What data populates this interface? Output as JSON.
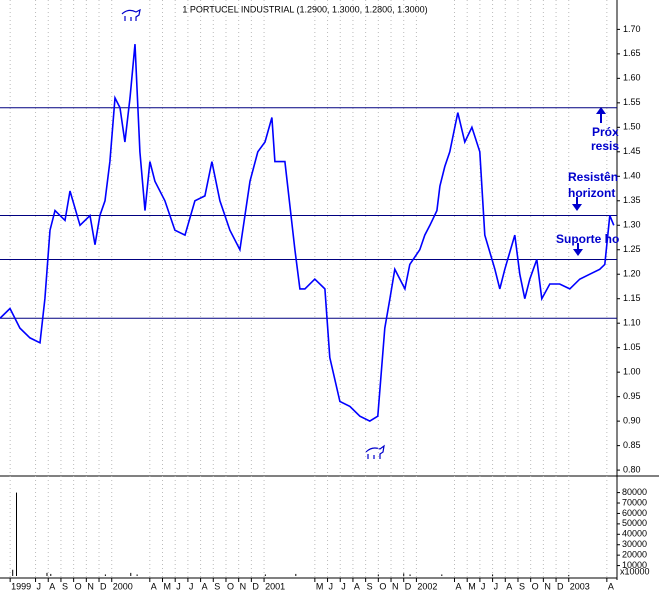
{
  "chart_data": {
    "type": "line",
    "title": "1 PORTUCEL INDUSTRIAL (1.2900, 1.3000, 1.2800, 1.3000)",
    "x": [
      3.2,
      3.99,
      4.77,
      5.56,
      6.35,
      6.74,
      7.14,
      7.53,
      8.32,
      8.71,
      9.5,
      10.29,
      10.68,
      11.07,
      11.47,
      11.86,
      12.26,
      12.65,
      13.04,
      13.44,
      13.83,
      14.22,
      14.62,
      15.01,
      15.4,
      16.19,
      16.98,
      17.77,
      18.55,
      19.34,
      19.89,
      20.52,
      21.31,
      22.1,
      22.89,
      23.51,
      24.07,
      24.62,
      24.85,
      25.64,
      26.43,
      26.82,
      27.22,
      28.0,
      28.79,
      29.18,
      29.97,
      30.76,
      31.55,
      32.33,
      32.96,
      33.51,
      33.91,
      34.3,
      35.09,
      35.48,
      36.27,
      36.66,
      37.06,
      37.61,
      37.85,
      38.24,
      38.63,
      39.26,
      39.81,
      40.37,
      40.99,
      41.39,
      42.18,
      42.57,
      42.96,
      43.75,
      44.14,
      44.54,
      44.93,
      45.48,
      45.88,
      46.51,
      47.29,
      48.08,
      48.87,
      49.66,
      50.44,
      50.84,
      51.23,
      51.55
    ],
    "values": [
      1.11,
      1.13,
      1.09,
      1.07,
      1.06,
      1.15,
      1.29,
      1.33,
      1.31,
      1.37,
      1.3,
      1.32,
      1.26,
      1.32,
      1.35,
      1.43,
      1.56,
      1.54,
      1.47,
      1.56,
      1.67,
      1.45,
      1.33,
      1.43,
      1.39,
      1.35,
      1.29,
      1.28,
      1.35,
      1.36,
      1.43,
      1.35,
      1.29,
      1.25,
      1.39,
      1.45,
      1.47,
      1.52,
      1.43,
      1.43,
      1.25,
      1.17,
      1.17,
      1.19,
      1.17,
      1.03,
      0.94,
      0.93,
      0.91,
      0.9,
      0.91,
      1.09,
      1.15,
      1.21,
      1.17,
      1.22,
      1.25,
      1.28,
      1.3,
      1.33,
      1.38,
      1.42,
      1.45,
      1.53,
      1.47,
      1.5,
      1.45,
      1.28,
      1.21,
      1.17,
      1.21,
      1.28,
      1.2,
      1.15,
      1.19,
      1.23,
      1.15,
      1.18,
      1.18,
      1.17,
      1.19,
      1.2,
      1.21,
      1.22,
      1.32,
      1.3
    ],
    "color": "#0000ff",
    "xlim": [
      3.2,
      51.8
    ],
    "ylim": [
      0.79,
      1.76
    ],
    "yticks": [
      {
        "value": 0.8,
        "label": "0.80"
      },
      0.85,
      {
        "value": 0.9,
        "label": "0.90"
      },
      0.95,
      {
        "value": 1.0,
        "label": "1.00"
      },
      1.05,
      {
        "value": 1.1,
        "label": "1.10"
      },
      1.15,
      {
        "value": 1.2,
        "label": "1.20"
      },
      1.25,
      {
        "value": 1.3,
        "label": "1.30"
      },
      1.35,
      {
        "value": 1.4,
        "label": "1.40"
      },
      1.45,
      {
        "value": 1.5,
        "label": "1.50"
      },
      1.55,
      {
        "value": 1.6,
        "label": "1.60"
      },
      1.65,
      {
        "value": 1.7,
        "label": "1.70"
      }
    ],
    "xticks": [
      {
        "value": 4,
        "label": "1999"
      },
      {
        "value": 6,
        "label": "J"
      },
      {
        "value": 7,
        "label": "A"
      },
      {
        "value": 8,
        "label": "S"
      },
      {
        "value": 9,
        "label": "O"
      },
      {
        "value": 10,
        "label": "N"
      },
      {
        "value": 11,
        "label": "D"
      },
      {
        "value": 12,
        "label": "2000"
      },
      {
        "value": 15,
        "label": "A"
      },
      {
        "value": 16,
        "label": "M"
      },
      {
        "value": 17,
        "label": "J"
      },
      {
        "value": 18,
        "label": "J"
      },
      {
        "value": 19,
        "label": "A"
      },
      {
        "value": 20,
        "label": "S"
      },
      {
        "value": 21,
        "label": "O"
      },
      {
        "value": 22,
        "label": "N"
      },
      {
        "value": 23,
        "label": "D"
      },
      {
        "value": 24,
        "label": "2001"
      },
      {
        "value": 28,
        "label": "M"
      },
      {
        "value": 29,
        "label": "J"
      },
      {
        "value": 30,
        "label": "J"
      },
      {
        "value": 31,
        "label": "A"
      },
      {
        "value": 32,
        "label": "S"
      },
      {
        "value": 33,
        "label": "O"
      },
      {
        "value": 34,
        "label": "N"
      },
      {
        "value": 35,
        "label": "D"
      },
      {
        "value": 36,
        "label": "2002"
      },
      {
        "value": 39,
        "label": "A"
      },
      {
        "value": 40,
        "label": "M"
      },
      {
        "value": 41,
        "label": "J"
      },
      {
        "value": 42,
        "label": "J"
      },
      {
        "value": 43,
        "label": "A"
      },
      {
        "value": 44,
        "label": "S"
      },
      {
        "value": 45,
        "label": "O"
      },
      {
        "value": 46,
        "label": "N"
      },
      {
        "value": 47,
        "label": "D"
      },
      {
        "value": 48,
        "label": "2003"
      },
      {
        "value": 51,
        "label": "A"
      }
    ],
    "grid": true,
    "hlines": {
      "values": [
        1.54,
        1.32,
        1.23,
        1.11
      ],
      "color": "#000080"
    },
    "annotations": [
      "Próx",
      "resis",
      "Resistên",
      "horizont",
      "Suporte ho"
    ],
    "volume": {
      "x": [
        4.2,
        4.5,
        6.9,
        7.2,
        11.5,
        13.5,
        14.0,
        24.1,
        26.5,
        33.0,
        35.0,
        35.5,
        38.0,
        42.0,
        48.0
      ],
      "values": [
        6000,
        80000,
        3000,
        2000,
        1500,
        3000,
        1500,
        1500,
        2000,
        1500,
        2500,
        1500,
        1500,
        1500,
        1000
      ],
      "ylim": [
        0,
        94000
      ],
      "yticks": [
        10000,
        20000,
        30000,
        40000,
        50000,
        60000,
        70000,
        80000
      ],
      "unit_label": "x10000"
    }
  }
}
